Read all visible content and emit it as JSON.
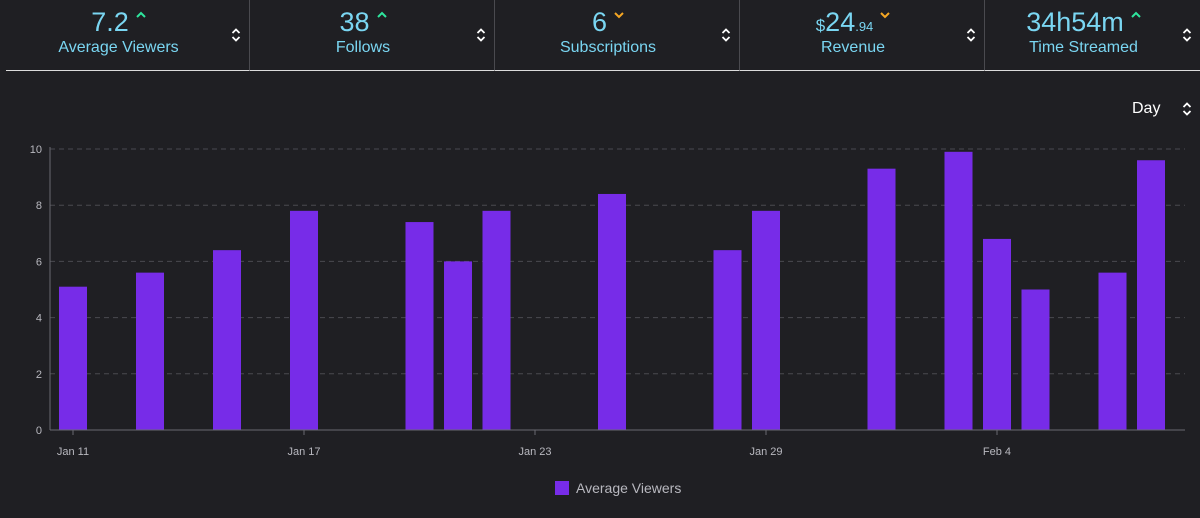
{
  "stats": [
    {
      "value": "7.2",
      "prefix": "",
      "sub": "",
      "trend": "up",
      "label": "Average Viewers"
    },
    {
      "value": "38",
      "prefix": "",
      "sub": "",
      "trend": "up",
      "label": "Follows"
    },
    {
      "value": "6",
      "prefix": "",
      "sub": "",
      "trend": "down",
      "label": "Subscriptions"
    },
    {
      "value": "24",
      "prefix": "$",
      "sub": ".94",
      "trend": "down",
      "label": "Revenue"
    },
    {
      "value": "34h54m",
      "prefix": "",
      "sub": "",
      "trend": "up",
      "label": "Time Streamed"
    }
  ],
  "interval_select": {
    "value": "Day"
  },
  "colors": {
    "background": "#1f1f23",
    "accent_text": "#7ad6f2",
    "trend_up": "#2ee59d",
    "trend_down": "#f5a623",
    "bar": "#772ce8"
  },
  "chart_data": {
    "type": "bar",
    "x_start": "Jan 11",
    "x_end": "Feb 8",
    "x_ticks": [
      "Jan 11",
      "Jan 17",
      "Jan 23",
      "Jan 29",
      "Feb 4"
    ],
    "ylim": [
      0,
      10
    ],
    "y_ticks": [
      "0",
      "2",
      "4",
      "6",
      "8",
      "10"
    ],
    "grid": true,
    "legend": "bottom-center",
    "series": [
      {
        "name": "Average Viewers",
        "points": [
          {
            "x": "Jan 11",
            "y": 5.1
          },
          {
            "x": "Jan 13",
            "y": 5.6
          },
          {
            "x": "Jan 15",
            "y": 6.4
          },
          {
            "x": "Jan 17",
            "y": 7.8
          },
          {
            "x": "Jan 20",
            "y": 7.4
          },
          {
            "x": "Jan 21",
            "y": 6.0
          },
          {
            "x": "Jan 22",
            "y": 7.8
          },
          {
            "x": "Jan 25",
            "y": 8.4
          },
          {
            "x": "Jan 28",
            "y": 6.4
          },
          {
            "x": "Jan 29",
            "y": 7.8
          },
          {
            "x": "Feb 1",
            "y": 9.3
          },
          {
            "x": "Feb 3",
            "y": 9.9
          },
          {
            "x": "Feb 4",
            "y": 6.8
          },
          {
            "x": "Feb 5",
            "y": 5.0
          },
          {
            "x": "Feb 7",
            "y": 5.6
          },
          {
            "x": "Feb 8",
            "y": 9.6
          }
        ]
      }
    ]
  }
}
